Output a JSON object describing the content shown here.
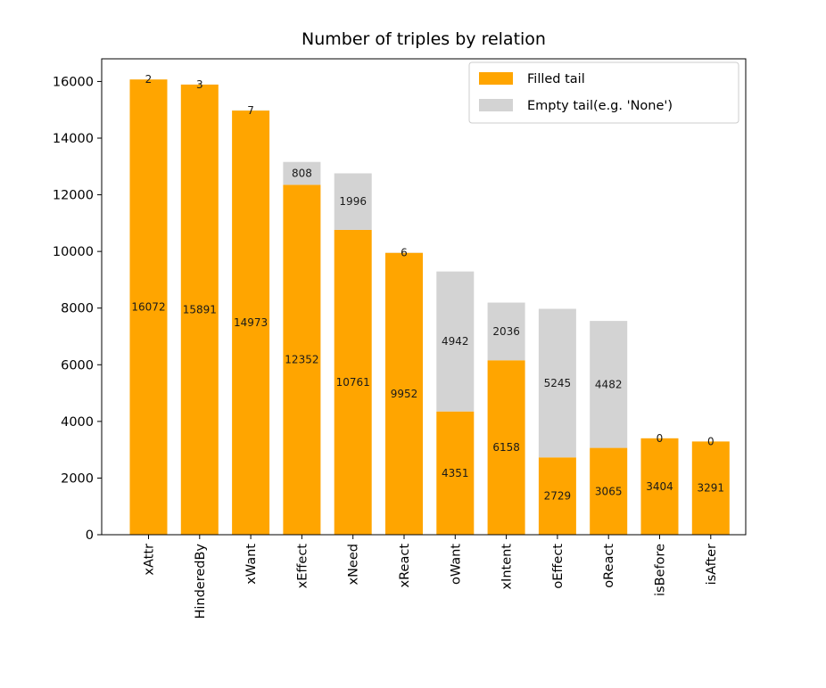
{
  "chart_data": {
    "type": "bar",
    "stacked": true,
    "title": "Number of triples by relation",
    "xlabel": "",
    "ylabel": "",
    "ylim": [
      0,
      16800
    ],
    "yticks": [
      0,
      2000,
      4000,
      6000,
      8000,
      10000,
      12000,
      14000,
      16000
    ],
    "categories": [
      "xAttr",
      "HinderedBy",
      "xWant",
      "xEffect",
      "xNeed",
      "xReact",
      "oWant",
      "xIntent",
      "oEffect",
      "oReact",
      "isBefore",
      "isAfter"
    ],
    "series": [
      {
        "name": "Filled tail",
        "color": "#ffa500",
        "values": [
          16072,
          15891,
          14973,
          12352,
          10761,
          9952,
          4351,
          6158,
          2729,
          3065,
          3404,
          3291
        ]
      },
      {
        "name": "Empty tail(e.g. 'None')",
        "color": "#d3d3d3",
        "values": [
          2,
          3,
          7,
          808,
          1996,
          6,
          4942,
          2036,
          5245,
          4482,
          0,
          0
        ]
      }
    ],
    "legend": "top-right",
    "grid": false
  }
}
